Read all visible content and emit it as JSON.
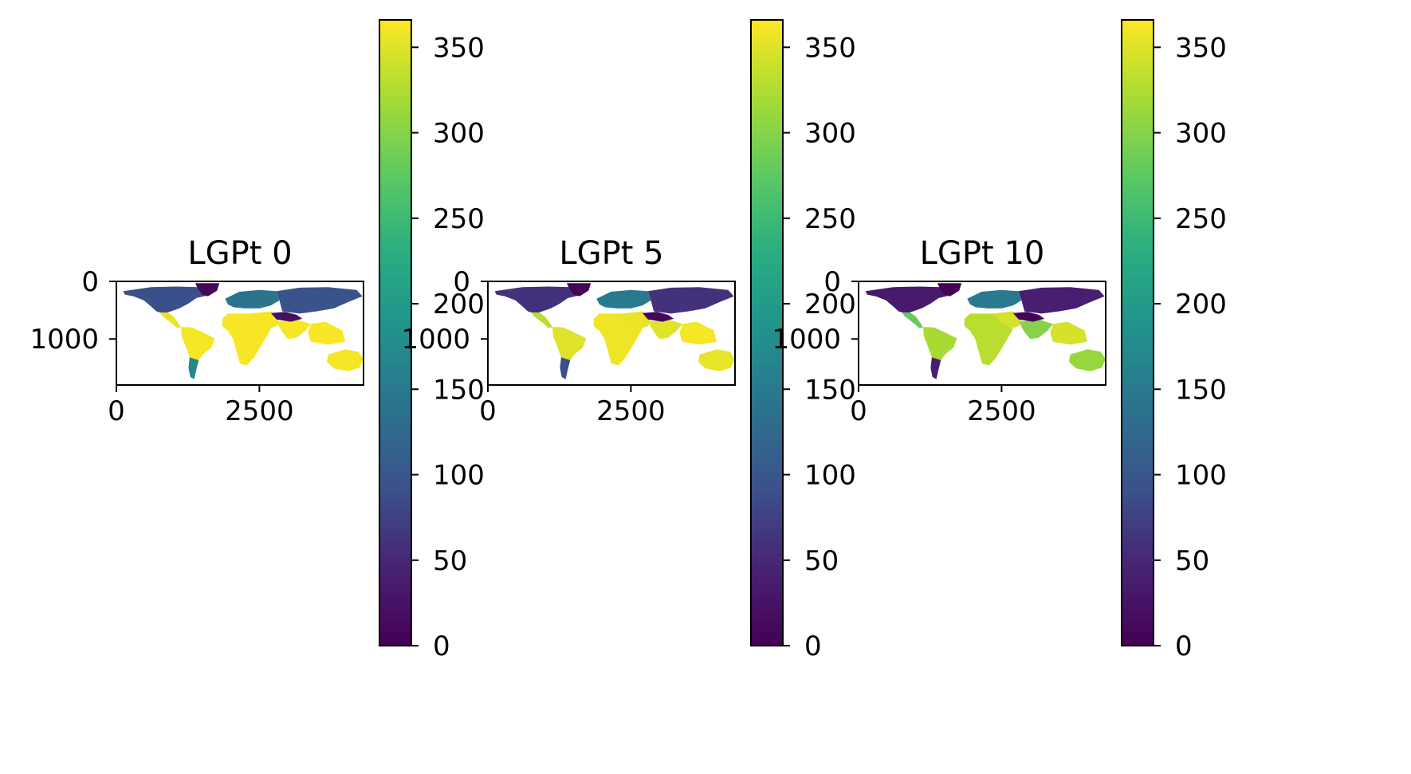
{
  "chart_data": [
    {
      "type": "heatmap",
      "title": "LGPt 0",
      "xticks": [
        0,
        2500
      ],
      "yticks": [
        0,
        1000
      ],
      "xlim": [
        0,
        4320
      ],
      "ylim": [
        1800,
        0
      ],
      "colorbar": {
        "min": 0,
        "max": 366,
        "ticks": [
          0,
          50,
          100,
          150,
          200,
          250,
          300,
          350
        ],
        "colormap": "viridis"
      },
      "regions": {
        "north_america": 90,
        "greenland": 10,
        "central_america": 355,
        "south_america": 362,
        "patagonia": 170,
        "europe": 140,
        "north_asia": 95,
        "tibet": 20,
        "middle_east": 362,
        "africa": 363,
        "south_asia": 362,
        "southeast_asia": 364,
        "australia": 362
      }
    },
    {
      "type": "heatmap",
      "title": "LGPt 5",
      "xticks": [
        0,
        2500
      ],
      "yticks": [
        0,
        1000
      ],
      "xlim": [
        0,
        4320
      ],
      "ylim": [
        1800,
        0
      ],
      "colorbar": {
        "min": 0,
        "max": 366,
        "ticks": [
          0,
          50,
          100,
          150,
          200,
          250,
          300,
          350
        ],
        "colormap": "viridis"
      },
      "regions": {
        "north_america": 60,
        "greenland": 5,
        "central_america": 330,
        "south_america": 350,
        "patagonia": 90,
        "europe": 150,
        "north_asia": 60,
        "tibet": 10,
        "middle_east": 355,
        "africa": 358,
        "south_asia": 350,
        "southeast_asia": 362,
        "australia": 355
      }
    },
    {
      "type": "heatmap",
      "title": "LGPt 10",
      "xticks": [
        0,
        2500
      ],
      "yticks": [
        0,
        1000
      ],
      "xlim": [
        0,
        4320
      ],
      "ylim": [
        1800,
        0
      ],
      "colorbar": {
        "min": 0,
        "max": 366,
        "ticks": [
          0,
          50,
          100,
          150,
          200,
          250,
          300,
          350
        ],
        "colormap": "viridis"
      },
      "regions": {
        "north_america": 35,
        "greenland": 3,
        "central_america": 280,
        "south_america": 320,
        "patagonia": 40,
        "europe": 150,
        "north_asia": 40,
        "tibet": 5,
        "middle_east": 345,
        "africa": 330,
        "south_asia": 300,
        "southeast_asia": 345,
        "australia": 310
      }
    }
  ]
}
